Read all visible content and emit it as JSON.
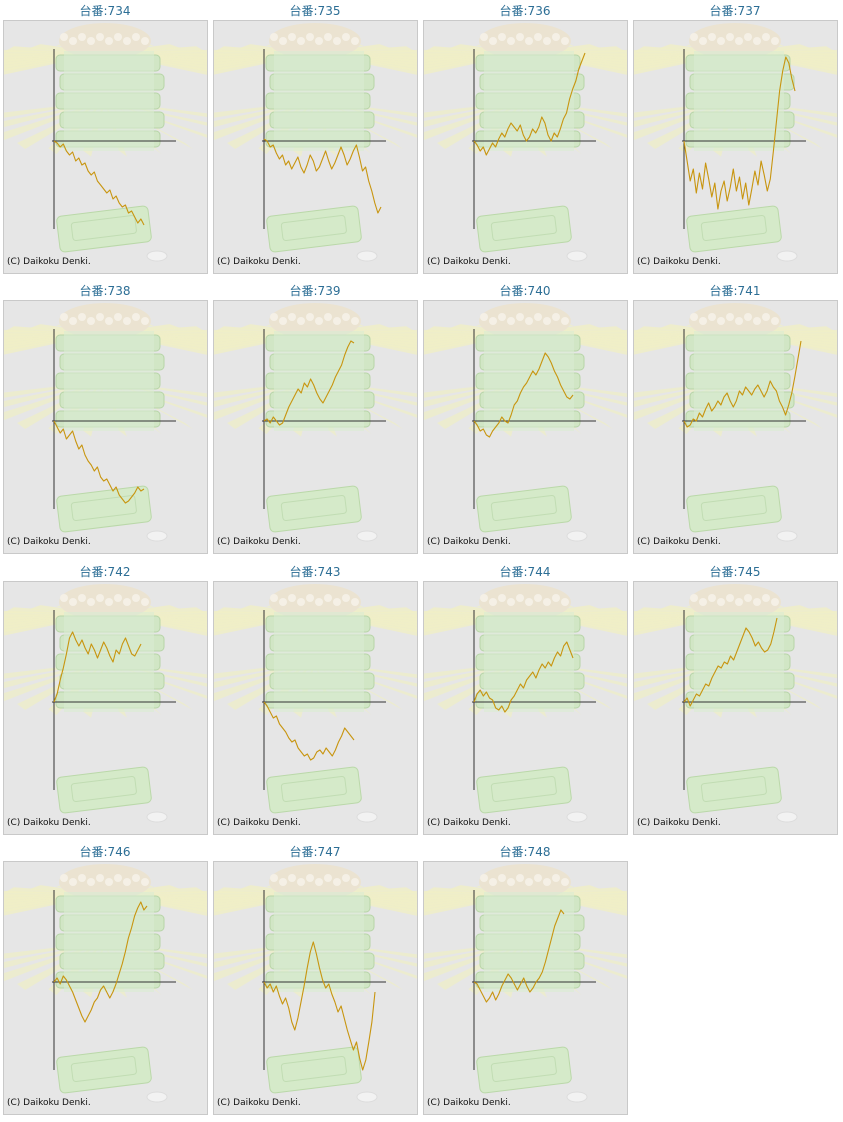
{
  "credit": "(C) Daikoku Denki.",
  "colors": {
    "line": "#c8950f",
    "axis": "#333333",
    "title": "#2c6e95",
    "panel_bg": "#e6e6e6"
  },
  "chart_data": [
    {
      "type": "line",
      "title": "台番:734",
      "y": [
        0,
        -2,
        -6,
        -3,
        -10,
        -14,
        -11,
        -20,
        -17,
        -24,
        -22,
        -30,
        -34,
        -31,
        -40,
        -44,
        -48,
        -52,
        -49,
        -58,
        -55,
        -62,
        -66,
        -64,
        -72,
        -70,
        -76,
        -82,
        -78,
        -84
      ]
    },
    {
      "type": "line",
      "title": "台番:735",
      "y": [
        2,
        0,
        -6,
        -4,
        -12,
        -18,
        -14,
        -24,
        -20,
        -28,
        -22,
        -16,
        -26,
        -32,
        -24,
        -14,
        -20,
        -30,
        -26,
        -18,
        -10,
        -20,
        -28,
        -22,
        -14,
        -6,
        -14,
        -24,
        -18,
        -10,
        -4,
        -16,
        -30,
        -26,
        -40,
        -50,
        -62,
        -72,
        -66
      ]
    },
    {
      "type": "line",
      "title": "台番:736",
      "y": [
        0,
        -4,
        -10,
        -6,
        -14,
        -8,
        -2,
        -6,
        2,
        8,
        4,
        12,
        18,
        14,
        10,
        16,
        6,
        0,
        4,
        12,
        8,
        14,
        24,
        18,
        6,
        0,
        8,
        4,
        12,
        22,
        28,
        42,
        52,
        60,
        72,
        80,
        88
      ]
    },
    {
      "type": "line",
      "title": "台番:737",
      "y": [
        0,
        -20,
        -40,
        -28,
        -52,
        -32,
        -48,
        -22,
        -38,
        -56,
        -42,
        -68,
        -50,
        -40,
        -60,
        -46,
        -28,
        -50,
        -36,
        -58,
        -42,
        -64,
        -48,
        -30,
        -44,
        -20,
        -34,
        -50,
        -38,
        -10,
        20,
        50,
        70,
        84,
        78,
        62,
        50
      ]
    },
    {
      "type": "line",
      "title": "台番:738",
      "y": [
        0,
        -6,
        -12,
        -8,
        -18,
        -14,
        -10,
        -20,
        -28,
        -24,
        -34,
        -40,
        -44,
        -50,
        -46,
        -56,
        -60,
        -58,
        -64,
        -70,
        -66,
        -74,
        -78,
        -82,
        -80,
        -76,
        -72,
        -66,
        -70,
        -68
      ]
    },
    {
      "type": "line",
      "title": "台番:739",
      "y": [
        0,
        2,
        -2,
        4,
        0,
        -4,
        -2,
        6,
        14,
        20,
        26,
        32,
        28,
        38,
        34,
        42,
        36,
        28,
        22,
        18,
        24,
        30,
        36,
        44,
        50,
        56,
        66,
        74,
        80,
        78
      ]
    },
    {
      "type": "line",
      "title": "台番:740",
      "y": [
        0,
        -4,
        -10,
        -8,
        -14,
        -16,
        -10,
        -6,
        -2,
        4,
        0,
        -2,
        6,
        16,
        20,
        28,
        34,
        38,
        44,
        50,
        46,
        52,
        60,
        68,
        64,
        58,
        50,
        44,
        36,
        30,
        24,
        22,
        26
      ]
    },
    {
      "type": "line",
      "title": "台番:741",
      "y": [
        0,
        -6,
        -4,
        2,
        0,
        8,
        4,
        12,
        18,
        10,
        14,
        20,
        16,
        24,
        28,
        20,
        14,
        20,
        30,
        26,
        34,
        30,
        26,
        32,
        36,
        30,
        24,
        30,
        40,
        34,
        30,
        20,
        14,
        6,
        16,
        28,
        44,
        62,
        80
      ]
    },
    {
      "type": "line",
      "title": "台番:742",
      "y": [
        0,
        8,
        22,
        34,
        48,
        64,
        70,
        62,
        56,
        62,
        54,
        48,
        58,
        52,
        44,
        52,
        60,
        54,
        46,
        40,
        52,
        48,
        58,
        64,
        56,
        48,
        46,
        52,
        58
      ]
    },
    {
      "type": "line",
      "title": "台番:743",
      "y": [
        0,
        -4,
        -10,
        -16,
        -14,
        -22,
        -26,
        -30,
        -36,
        -40,
        -38,
        -46,
        -50,
        -54,
        -52,
        -58,
        -56,
        -50,
        -48,
        -52,
        -46,
        -50,
        -54,
        -48,
        -40,
        -34,
        -26,
        -30,
        -34,
        -38
      ]
    },
    {
      "type": "line",
      "title": "台番:744",
      "y": [
        0,
        8,
        12,
        6,
        10,
        4,
        2,
        -6,
        -8,
        -4,
        -10,
        -6,
        2,
        6,
        12,
        18,
        14,
        22,
        26,
        30,
        24,
        32,
        38,
        34,
        40,
        36,
        44,
        50,
        46,
        56,
        60,
        52,
        44
      ]
    },
    {
      "type": "line",
      "title": "台番:745",
      "y": [
        0,
        4,
        -4,
        2,
        8,
        6,
        12,
        18,
        16,
        24,
        30,
        36,
        34,
        40,
        38,
        46,
        42,
        50,
        58,
        66,
        74,
        70,
        64,
        56,
        60,
        54,
        50,
        52,
        58,
        70,
        84
      ]
    },
    {
      "type": "line",
      "title": "台番:746",
      "y": [
        0,
        4,
        -2,
        6,
        2,
        -4,
        -10,
        -18,
        -26,
        -34,
        -40,
        -34,
        -28,
        -20,
        -16,
        -8,
        -4,
        -10,
        -16,
        -10,
        -2,
        8,
        18,
        30,
        44,
        54,
        66,
        74,
        80,
        72,
        76
      ]
    },
    {
      "type": "line",
      "title": "台番:747",
      "y": [
        0,
        -6,
        -2,
        -10,
        -4,
        -14,
        -22,
        -16,
        -26,
        -40,
        -48,
        -36,
        -20,
        -4,
        14,
        30,
        40,
        28,
        14,
        2,
        -6,
        -2,
        -12,
        -20,
        -30,
        -24,
        -36,
        -48,
        -58,
        -68,
        -60,
        -76,
        -88,
        -78,
        -60,
        -40,
        -10
      ]
    },
    {
      "type": "line",
      "title": "台番:748",
      "y": [
        0,
        -2,
        -8,
        -14,
        -20,
        -16,
        -10,
        -18,
        -12,
        -4,
        2,
        8,
        4,
        -2,
        -8,
        -2,
        4,
        -4,
        -10,
        -6,
        0,
        4,
        10,
        20,
        32,
        44,
        56,
        64,
        72,
        68
      ]
    }
  ]
}
